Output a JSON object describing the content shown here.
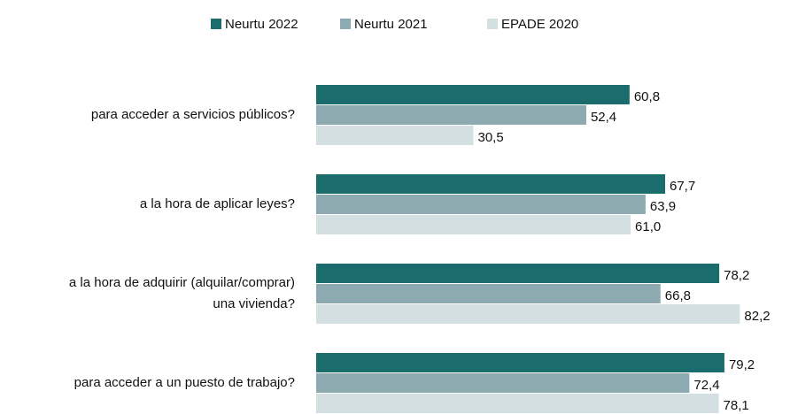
{
  "chart_data": {
    "type": "barh",
    "categories": [
      "para acceder a servicios públicos?",
      "a la hora de aplicar leyes?",
      "a la hora de adquirir (alquilar/comprar)\nuna vivienda?",
      "para acceder a un puesto de trabajo?"
    ],
    "series": [
      {
        "name": "Neurtu 2022",
        "color": "#1b6d6d",
        "values": [
          60.8,
          67.7,
          78.2,
          79.2
        ],
        "value_labels": [
          "60,8",
          "67,7",
          "78,2",
          "79,2"
        ]
      },
      {
        "name": "Neurtu 2021",
        "color": "#8eaab1",
        "values": [
          52.4,
          63.9,
          66.8,
          72.4
        ],
        "value_labels": [
          "52,4",
          "63,9",
          "66,8",
          "72,4"
        ]
      },
      {
        "name": "EPADE 2020",
        "color": "#d4dfe2",
        "values": [
          30.5,
          61.0,
          82.2,
          78.1
        ],
        "value_labels": [
          "30,5",
          "61,0",
          "82,2",
          "78,1"
        ]
      }
    ]
  }
}
